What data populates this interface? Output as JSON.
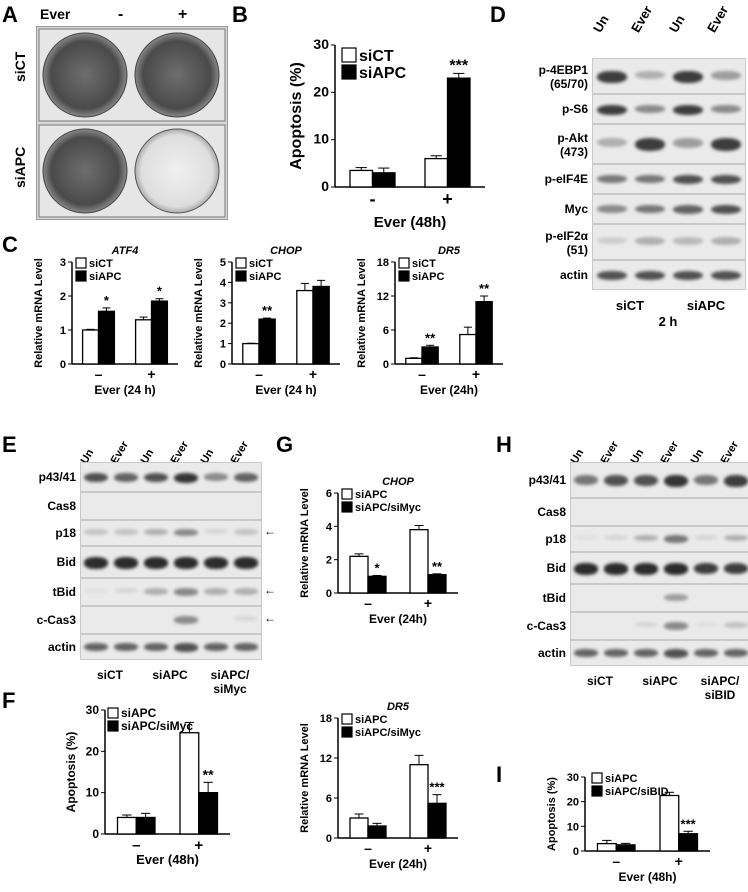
{
  "panels": {
    "A": {
      "label": "A",
      "ever": "Ever",
      "minus": "-",
      "plus": "+",
      "rows": [
        "siCT",
        "siAPC"
      ]
    },
    "B": {
      "label": "B"
    },
    "C": {
      "label": "C"
    },
    "D": {
      "label": "D",
      "lanes": [
        "Un",
        "Ever",
        "Un",
        "Ever"
      ],
      "rows": [
        "p-4EBP1\n(65/70)",
        "p-S6",
        "p-Akt\n(473)",
        "p-eIF4E",
        "Myc",
        "p-eIF2α\n(51)",
        "actin"
      ],
      "groups": [
        "siCT",
        "siAPC"
      ],
      "time": "2 h"
    },
    "E": {
      "label": "E",
      "lanes": [
        "Un",
        "Ever",
        "Un",
        "Ever",
        "Un",
        "Ever"
      ],
      "rows": [
        "p43/41",
        "Cas8",
        "p18",
        "Bid",
        "tBid",
        "c-Cas3",
        "actin"
      ],
      "groups": [
        "siCT",
        "siAPC",
        "siAPC/\nsiMyc"
      ],
      "arrow": "←"
    },
    "F": {
      "label": "F"
    },
    "G": {
      "label": "G"
    },
    "H": {
      "label": "H",
      "lanes": [
        "Un",
        "Ever",
        "Un",
        "Ever",
        "Un",
        "Ever"
      ],
      "rows": [
        "p43/41",
        "Cas8",
        "p18",
        "Bid",
        "tBid",
        "c-Cas3",
        "actin"
      ],
      "groups": [
        "siCT",
        "siAPC",
        "siAPC/\nsiBID"
      ],
      "arrow": "←"
    },
    "I": {
      "label": "I"
    }
  },
  "chart_data": [
    {
      "id": "B",
      "type": "bar",
      "title": "",
      "ylabel": "Apoptosis (%)",
      "xlabel": "Ever (48h)",
      "categories": [
        "-",
        "+"
      ],
      "ylim": [
        0,
        30
      ],
      "yticks": [
        0,
        10,
        20,
        30
      ],
      "series": [
        {
          "name": "siCT",
          "values": [
            3.5,
            6.0
          ],
          "err": [
            0.6,
            0.6
          ],
          "fill": "#ffffff"
        },
        {
          "name": "siAPC",
          "values": [
            3.0,
            23.0
          ],
          "err": [
            1.0,
            1.0
          ],
          "fill": "#000000"
        }
      ],
      "annotations": [
        {
          "series": 1,
          "cat": 1,
          "text": "***"
        }
      ]
    },
    {
      "id": "C1",
      "type": "bar",
      "title": "ATF4",
      "ylabel": "Relative mRNA Level",
      "xlabel": "Ever (24 h)",
      "categories": [
        "–",
        "+"
      ],
      "ylim": [
        0,
        3
      ],
      "yticks": [
        0,
        1,
        2,
        3
      ],
      "series": [
        {
          "name": "siCT",
          "values": [
            1.0,
            1.3
          ],
          "err": [
            0.02,
            0.08
          ],
          "fill": "#ffffff"
        },
        {
          "name": "siAPC",
          "values": [
            1.55,
            1.85
          ],
          "err": [
            0.1,
            0.07
          ],
          "fill": "#000000"
        }
      ],
      "annotations": [
        {
          "series": 1,
          "cat": 0,
          "text": "*"
        },
        {
          "series": 1,
          "cat": 1,
          "text": "*"
        }
      ]
    },
    {
      "id": "C2",
      "type": "bar",
      "title": "CHOP",
      "ylabel": "Relative mRNA Level",
      "xlabel": "Ever (24 h)",
      "categories": [
        "–",
        "+"
      ],
      "ylim": [
        0,
        5
      ],
      "yticks": [
        0,
        1,
        2,
        3,
        4,
        5
      ],
      "series": [
        {
          "name": "siCT",
          "values": [
            1.0,
            3.6
          ],
          "err": [
            0.02,
            0.35
          ],
          "fill": "#ffffff"
        },
        {
          "name": "siAPC",
          "values": [
            2.2,
            3.8
          ],
          "err": [
            0.05,
            0.3
          ],
          "fill": "#000000"
        }
      ],
      "annotations": [
        {
          "series": 1,
          "cat": 0,
          "text": "**"
        }
      ]
    },
    {
      "id": "C3",
      "type": "bar",
      "title": "DR5",
      "ylabel": "Relative mRNA Level",
      "xlabel": "Ever (24h)",
      "categories": [
        "–",
        "+"
      ],
      "ylim": [
        0,
        18
      ],
      "yticks": [
        0,
        6,
        12,
        18
      ],
      "series": [
        {
          "name": "siCT",
          "values": [
            1.0,
            5.2
          ],
          "err": [
            0.1,
            1.3
          ],
          "fill": "#ffffff"
        },
        {
          "name": "siAPC",
          "values": [
            3.0,
            11.0
          ],
          "err": [
            0.3,
            1.0
          ],
          "fill": "#000000"
        }
      ],
      "annotations": [
        {
          "series": 1,
          "cat": 0,
          "text": "**"
        },
        {
          "series": 1,
          "cat": 1,
          "text": "**"
        }
      ]
    },
    {
      "id": "G1",
      "type": "bar",
      "title": "CHOP",
      "ylabel": "Relative mRNA Level",
      "xlabel": "Ever (24h)",
      "categories": [
        "–",
        "+"
      ],
      "ylim": [
        0,
        6
      ],
      "yticks": [
        0,
        2,
        4,
        6
      ],
      "series": [
        {
          "name": "siAPC",
          "values": [
            2.2,
            3.8
          ],
          "err": [
            0.15,
            0.25
          ],
          "fill": "#ffffff"
        },
        {
          "name": "siAPC/siMyc",
          "values": [
            1.0,
            1.1
          ],
          "err": [
            0.05,
            0.05
          ],
          "fill": "#000000"
        }
      ],
      "annotations": [
        {
          "series": 1,
          "cat": 0,
          "text": "*"
        },
        {
          "series": 1,
          "cat": 1,
          "text": "**"
        }
      ]
    },
    {
      "id": "G2",
      "type": "bar",
      "title": "DR5",
      "ylabel": "Relative mRNA Level",
      "xlabel": "Ever (24h)",
      "categories": [
        "–",
        "+"
      ],
      "ylim": [
        0,
        18
      ],
      "yticks": [
        0,
        6,
        12,
        18
      ],
      "series": [
        {
          "name": "siAPC",
          "values": [
            3.0,
            11.0
          ],
          "err": [
            0.6,
            1.4
          ],
          "fill": "#ffffff"
        },
        {
          "name": "siAPC/siMyc",
          "values": [
            1.8,
            5.2
          ],
          "err": [
            0.4,
            1.3
          ],
          "fill": "#000000"
        }
      ],
      "annotations": [
        {
          "series": 1,
          "cat": 1,
          "text": "***"
        }
      ]
    },
    {
      "id": "F",
      "type": "bar",
      "title": "",
      "ylabel": "Apoptosis (%)",
      "xlabel": "Ever (48h)",
      "categories": [
        "–",
        "+"
      ],
      "ylim": [
        0,
        30
      ],
      "yticks": [
        0,
        10,
        20,
        30
      ],
      "series": [
        {
          "name": "siAPC",
          "values": [
            4.0,
            24.5
          ],
          "err": [
            0.6,
            2.5
          ],
          "fill": "#ffffff"
        },
        {
          "name": "siAPC/siMyc",
          "values": [
            4.0,
            10.0
          ],
          "err": [
            1.0,
            2.5
          ],
          "fill": "#000000"
        }
      ],
      "annotations": [
        {
          "series": 1,
          "cat": 1,
          "text": "**"
        }
      ]
    },
    {
      "id": "I",
      "type": "bar",
      "title": "",
      "ylabel": "Apoptosis (%)",
      "xlabel": "Ever (48h)",
      "categories": [
        "–",
        "+"
      ],
      "ylim": [
        0,
        30
      ],
      "yticks": [
        0,
        10,
        20,
        30
      ],
      "series": [
        {
          "name": "siAPC",
          "values": [
            3.0,
            22.5
          ],
          "err": [
            1.3,
            1.3
          ],
          "fill": "#ffffff"
        },
        {
          "name": "siAPC/siBID",
          "values": [
            2.5,
            7.0
          ],
          "err": [
            0.6,
            1.0
          ],
          "fill": "#000000"
        }
      ],
      "annotations": [
        {
          "series": 1,
          "cat": 1,
          "text": "***"
        }
      ]
    }
  ]
}
